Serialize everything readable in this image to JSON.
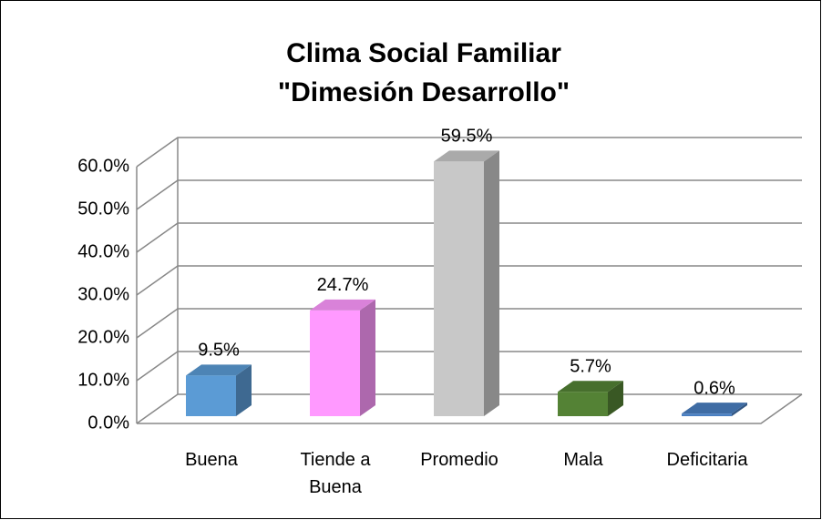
{
  "chart_data": {
    "type": "bar3d",
    "title": [
      "Clima Social Familiar",
      "\"Dimesión Desarrollo\""
    ],
    "categories": [
      "Buena",
      "Tiende a Buena",
      "Promedio",
      "Mala",
      "Deficitaria"
    ],
    "values": [
      9.5,
      24.7,
      59.5,
      5.7,
      0.6
    ],
    "value_labels": [
      "9.5%",
      "24.7%",
      "59.5%",
      "5.7%",
      "0.6%"
    ],
    "colors": [
      "#5b9bd5",
      "#ff99ff",
      "#c8c8c8",
      "#548235",
      "#4a7fc1"
    ],
    "ylim": [
      0,
      60
    ],
    "yticks": [
      {
        "value": 0,
        "label": "0.0%"
      },
      {
        "value": 10,
        "label": "10.0%"
      },
      {
        "value": 20,
        "label": "20.0%"
      },
      {
        "value": 30,
        "label": "30.0%"
      },
      {
        "value": 40,
        "label": "40.0%"
      },
      {
        "value": 50,
        "label": "50.0%"
      },
      {
        "value": 60,
        "label": "60.0%"
      }
    ],
    "grid": true
  }
}
